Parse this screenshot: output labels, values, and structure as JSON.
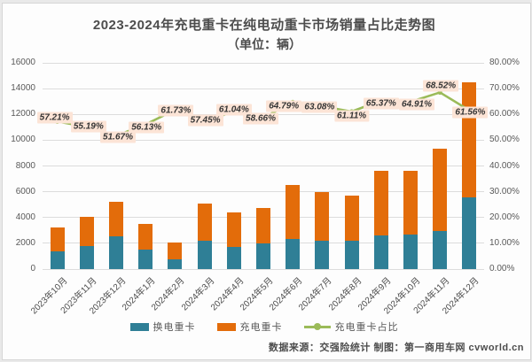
{
  "title": "2023-2024年充电重卡在纯电动重卡市场销量占比走势图",
  "subtitle": "（单位：辆）",
  "source_note": "数据来源：交强险统计 制图：第一商用车网 cvworld.cn",
  "colors": {
    "swap_bar": "#2f7f96",
    "charge_bar": "#e36c0a",
    "share_line": "#9bbb59",
    "label_bg": "#fce4d6",
    "grid": "#dcdcdc",
    "text": "#595959"
  },
  "chart_data": {
    "type": "combo-stacked-bar-line",
    "title": "2023-2024年充电重卡在纯电动重卡市场销量占比走势图",
    "subtitle": "（单位：辆）",
    "categories": [
      "2023年10月",
      "2023年11月",
      "2023年12月",
      "2024年1月",
      "2024年2月",
      "2024年3月",
      "2024年4月",
      "2024年5月",
      "2024年6月",
      "2024年7月",
      "2024年8月",
      "2024年9月",
      "2024年10月",
      "2024年11月",
      "2024年12月"
    ],
    "series": [
      {
        "name": "换电重卡",
        "type": "bar",
        "stacked": true,
        "color": "#2f7f96",
        "values": [
          1369,
          1815,
          2513,
          1535,
          785,
          2170,
          1714,
          1964,
          2306,
          2197,
          2217,
          2632,
          2684,
          2943,
          5574
        ]
      },
      {
        "name": "充电重卡",
        "type": "bar",
        "stacked": true,
        "color": "#e36c0a",
        "values": [
          1831,
          2235,
          2687,
          1965,
          1265,
          2930,
          2686,
          2786,
          4244,
          3753,
          3483,
          4968,
          4966,
          6407,
          8926
        ]
      },
      {
        "name": "充电重卡占比",
        "type": "line",
        "axis": "right",
        "color": "#9bbb59",
        "values_pct": [
          57.21,
          55.19,
          51.67,
          56.13,
          61.73,
          57.45,
          61.04,
          58.66,
          64.79,
          63.08,
          61.11,
          65.37,
          64.91,
          68.52,
          61.56
        ]
      }
    ],
    "left_axis": {
      "min": 0,
      "max": 16000,
      "step": 2000,
      "ticks": [
        "0",
        "2000",
        "4000",
        "6000",
        "8000",
        "10000",
        "12000",
        "14000",
        "16000"
      ]
    },
    "right_axis": {
      "min": 0,
      "max": 80,
      "step": 10,
      "ticks": [
        "0.00%",
        "10.00%",
        "20.00%",
        "30.00%",
        "40.00%",
        "50.00%",
        "60.00%",
        "70.00%",
        "80.00%"
      ]
    },
    "grid": true,
    "legend_position": "bottom"
  }
}
